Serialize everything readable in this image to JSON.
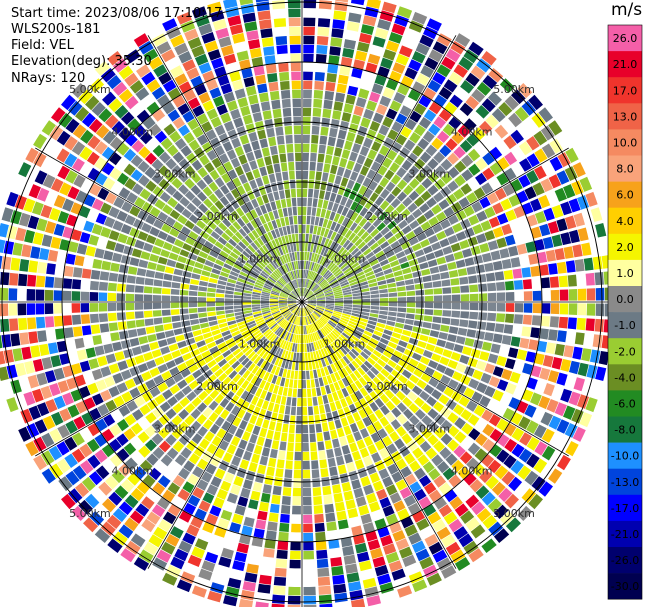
{
  "header": {
    "start_time": "Start time: 2023/08/06 17:10:17",
    "instrument": "WLS200s-181",
    "field": "Field: VEL",
    "elevation": "Elevation(deg): 35.30",
    "nrays": "NRays: 120"
  },
  "colorbar": {
    "unit": "m/s",
    "levels": [
      {
        "label": "26.0",
        "color": "#f45fa8"
      },
      {
        "label": "21.0",
        "color": "#e8002a"
      },
      {
        "label": "17.0",
        "color": "#f0342c"
      },
      {
        "label": "13.0",
        "color": "#f06347"
      },
      {
        "label": "10.0",
        "color": "#f58a61"
      },
      {
        "label": "8.0",
        "color": "#f9a37a"
      },
      {
        "label": "6.0",
        "color": "#f7a21b"
      },
      {
        "label": "4.0",
        "color": "#ffcf00"
      },
      {
        "label": "2.0",
        "color": "#f5f500"
      },
      {
        "label": "1.0",
        "color": "#ffffa0"
      },
      {
        "label": "0.0",
        "color": "#8a8a8a"
      },
      {
        "label": "-1.0",
        "color": "#6c7a85"
      },
      {
        "label": "-2.0",
        "color": "#9acd32"
      },
      {
        "label": "-4.0",
        "color": "#6b8e23"
      },
      {
        "label": "-6.0",
        "color": "#228b22"
      },
      {
        "label": "-8.0",
        "color": "#16783c"
      },
      {
        "label": "-10.0",
        "color": "#1e90ff"
      },
      {
        "label": "-13.0",
        "color": "#0044dd"
      },
      {
        "label": "-17.0",
        "color": "#0000ff"
      },
      {
        "label": "-21.0",
        "color": "#0000b0"
      },
      {
        "label": "-26.0",
        "color": "#00006e"
      },
      {
        "label": "-30.0",
        "color": "#000050"
      }
    ]
  },
  "rings": {
    "labels": [
      "1.00km",
      "2.00km",
      "3.00km",
      "4.00km",
      "5.00km"
    ]
  },
  "chart_data": {
    "type": "heatmap",
    "subtype": "polar PPI scan",
    "field": "VEL",
    "units": "m/s",
    "nrays": 120,
    "range_rings_km": [
      1.0,
      2.0,
      3.0,
      4.0,
      5.0
    ],
    "colorbar_ticks": [
      26.0,
      21.0,
      17.0,
      13.0,
      10.0,
      8.0,
      6.0,
      4.0,
      2.0,
      1.0,
      0.0,
      -1.0,
      -2.0,
      -4.0,
      -6.0,
      -8.0,
      -10.0,
      -13.0,
      -17.0,
      -21.0,
      -26.0,
      -30.0
    ],
    "velocity_pattern": {
      "inner_region_km": 3.0,
      "negative_sector_center_deg": 0,
      "positive_sector_center_deg": 180,
      "typical_magnitude_ms": 2.0,
      "outer_noise_beyond_km": 3.3
    }
  }
}
